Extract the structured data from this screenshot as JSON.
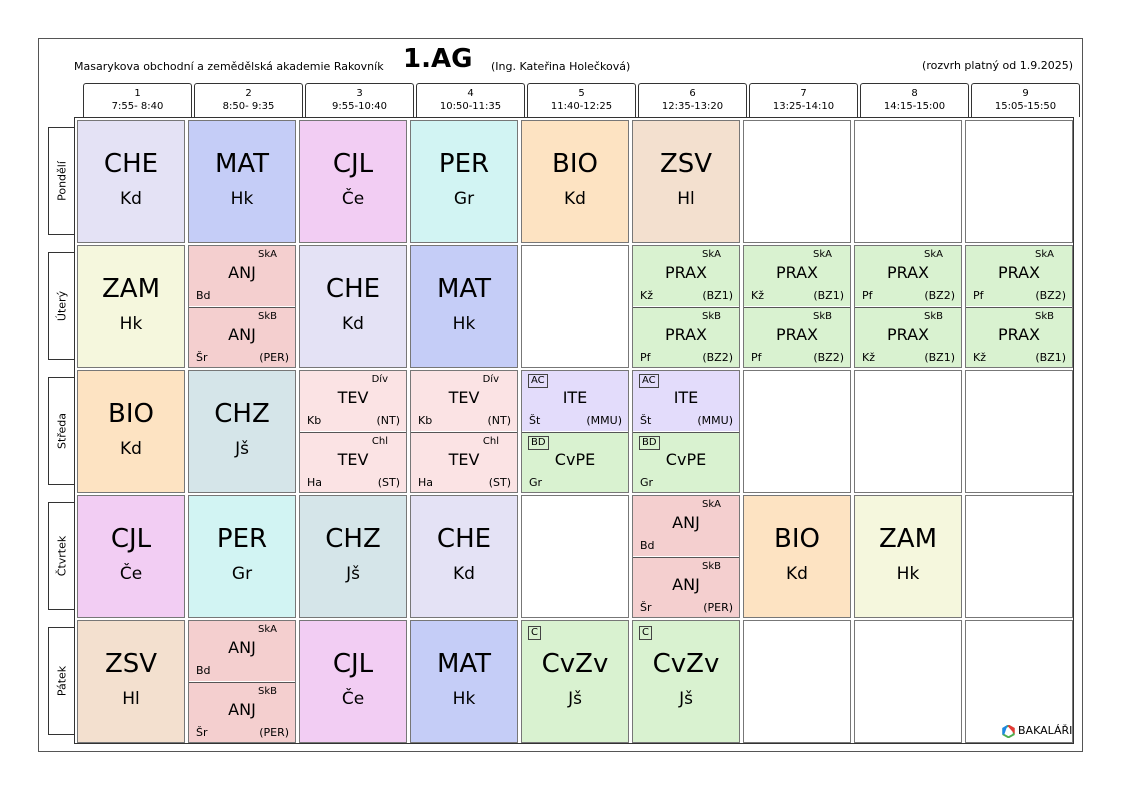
{
  "header": {
    "school": "Masarykova obchodní a zemědělská akademie Rakovník",
    "class": "1.AG",
    "teacher": "(Ing. Kateřina Holečková)",
    "valid_from": "(rozvrh platný od 1.9.2025)"
  },
  "periods": [
    {
      "num": "1",
      "time": "7:55- 8:40"
    },
    {
      "num": "2",
      "time": "8:50- 9:35"
    },
    {
      "num": "3",
      "time": "9:55-10:40"
    },
    {
      "num": "4",
      "time": "10:50-11:35"
    },
    {
      "num": "5",
      "time": "11:40-12:25"
    },
    {
      "num": "6",
      "time": "12:35-13:20"
    },
    {
      "num": "7",
      "time": "13:25-14:10"
    },
    {
      "num": "8",
      "time": "14:15-15:00"
    },
    {
      "num": "9",
      "time": "15:05-15:50"
    }
  ],
  "days": [
    "Pondělí",
    "Úterý",
    "Středa",
    "Čtvrtek",
    "Pátek"
  ],
  "colors": {
    "CHE": "#e4e2f5",
    "MAT": "#c5cdf7",
    "CJL": "#f2cdf3",
    "PER": "#d2f4f3",
    "BIO": "#fde3c2",
    "ZSV": "#f3e0cf",
    "ZAM": "#f5f7dd",
    "CHZ": "#d5e5e9",
    "ANJ": "#f4cfcf",
    "PRAX": "#d9f2d0",
    "TEV": "#fbe3e4",
    "ITE": "#e3dcfb",
    "CvPE": "#d9f2d0",
    "CvZv": "#d9f2d0"
  },
  "schedule": {
    "mon": [
      {
        "s": "CHE",
        "t": "Kd"
      },
      {
        "s": "MAT",
        "t": "Hk"
      },
      {
        "s": "CJL",
        "t": "Če"
      },
      {
        "s": "PER",
        "t": "Gr"
      },
      {
        "s": "BIO",
        "t": "Kd"
      },
      {
        "s": "ZSV",
        "t": "Hl"
      }
    ],
    "tue": [
      {
        "s": "ZAM",
        "t": "Hk"
      },
      {
        "split": [
          {
            "g": "SkA",
            "s": "ANJ",
            "t": "Bd",
            "r": ""
          },
          {
            "g": "SkB",
            "s": "ANJ",
            "t": "Šr",
            "r": "(PER)"
          }
        ]
      },
      {
        "s": "CHE",
        "t": "Kd"
      },
      {
        "s": "MAT",
        "t": "Hk"
      },
      null,
      {
        "split": [
          {
            "g": "SkA",
            "s": "PRAX",
            "t": "Kž",
            "r": "(BZ1)"
          },
          {
            "g": "SkB",
            "s": "PRAX",
            "t": "Pf",
            "r": "(BZ2)"
          }
        ]
      },
      {
        "split": [
          {
            "g": "SkA",
            "s": "PRAX",
            "t": "Kž",
            "r": "(BZ1)"
          },
          {
            "g": "SkB",
            "s": "PRAX",
            "t": "Pf",
            "r": "(BZ2)"
          }
        ]
      },
      {
        "split": [
          {
            "g": "SkA",
            "s": "PRAX",
            "t": "Pf",
            "r": "(BZ2)"
          },
          {
            "g": "SkB",
            "s": "PRAX",
            "t": "Kž",
            "r": "(BZ1)"
          }
        ]
      },
      {
        "split": [
          {
            "g": "SkA",
            "s": "PRAX",
            "t": "Pf",
            "r": "(BZ2)"
          },
          {
            "g": "SkB",
            "s": "PRAX",
            "t": "Kž",
            "r": "(BZ1)"
          }
        ]
      }
    ],
    "wed": [
      {
        "s": "BIO",
        "t": "Kd"
      },
      {
        "s": "CHZ",
        "t": "Jš"
      },
      {
        "split": [
          {
            "g": "Dív",
            "s": "TEV",
            "t": "Kb",
            "r": "(NT)"
          },
          {
            "g": "Chl",
            "s": "TEV",
            "t": "Ha",
            "r": "(ST)"
          }
        ]
      },
      {
        "split": [
          {
            "g": "Dív",
            "s": "TEV",
            "t": "Kb",
            "r": "(NT)"
          },
          {
            "g": "Chl",
            "s": "TEV",
            "t": "Ha",
            "r": "(ST)"
          }
        ]
      },
      {
        "split": [
          {
            "tag": "AC",
            "s": "ITE",
            "t": "Št",
            "r": "(MMU)"
          },
          {
            "tag": "BD",
            "s": "CvPE",
            "t": "Gr",
            "r": ""
          }
        ]
      },
      {
        "split": [
          {
            "tag": "AC",
            "s": "ITE",
            "t": "Št",
            "r": "(MMU)"
          },
          {
            "tag": "BD",
            "s": "CvPE",
            "t": "Gr",
            "r": ""
          }
        ]
      }
    ],
    "thu": [
      {
        "s": "CJL",
        "t": "Če"
      },
      {
        "s": "PER",
        "t": "Gr"
      },
      {
        "s": "CHZ",
        "t": "Jš"
      },
      {
        "s": "CHE",
        "t": "Kd"
      },
      null,
      {
        "split": [
          {
            "g": "SkA",
            "s": "ANJ",
            "t": "Bd",
            "r": ""
          },
          {
            "g": "SkB",
            "s": "ANJ",
            "t": "Šr",
            "r": "(PER)"
          }
        ]
      },
      {
        "s": "BIO",
        "t": "Kd"
      },
      {
        "s": "ZAM",
        "t": "Hk"
      }
    ],
    "fri": [
      {
        "s": "ZSV",
        "t": "Hl"
      },
      {
        "split": [
          {
            "g": "SkA",
            "s": "ANJ",
            "t": "Bd",
            "r": ""
          },
          {
            "g": "SkB",
            "s": "ANJ",
            "t": "Šr",
            "r": "(PER)"
          }
        ]
      },
      {
        "s": "CJL",
        "t": "Če"
      },
      {
        "s": "MAT",
        "t": "Hk"
      },
      {
        "tag": "C",
        "s": "CvZv",
        "t": "Jš"
      },
      {
        "tag": "C",
        "s": "CvZv",
        "t": "Jš"
      }
    ]
  },
  "footer": {
    "logo_text": "BAKALÁŘI",
    "logo_icon": "bakalari-hexagon-icon"
  }
}
